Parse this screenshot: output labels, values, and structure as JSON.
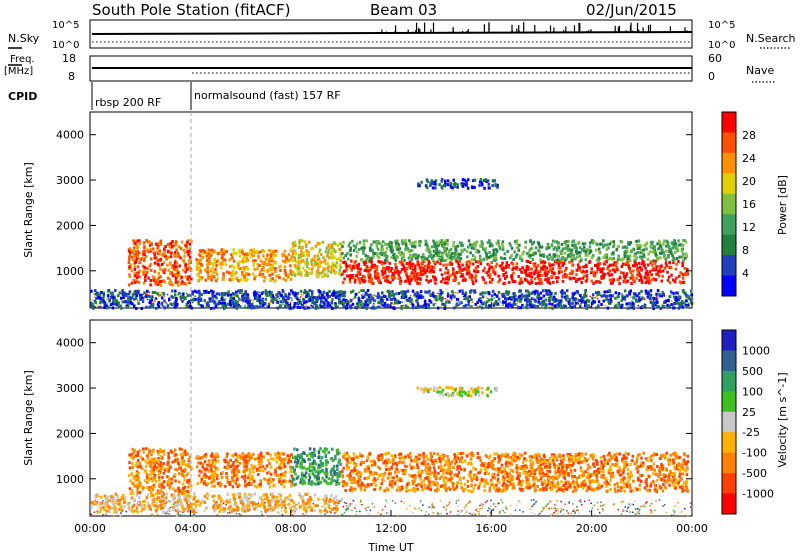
{
  "header": {
    "station": "South Pole Station (fitACF)",
    "beam": "Beam 03",
    "date": "02/Jun/2015"
  },
  "panels": {
    "nsky_label": "N.Sky",
    "nsearch_label": "N.Search",
    "freq_label_1": "Freq.",
    "freq_label_2": "[MHz]",
    "nave_label": "Nave",
    "cpid_label": "CPID",
    "sky_top": "10^5",
    "sky_bot": "10^0",
    "search_top": "10^5",
    "search_bot": "10^0",
    "freq_top": "18",
    "freq_bot": "8",
    "nave_top": "60",
    "nave_bot": "0",
    "cpid_1": "rbsp 200 RF",
    "cpid_2": "normalsound (fast) 157 RF"
  },
  "colors": {
    "power_scale": [
      "#0000ff",
      "#2040c0",
      "#208040",
      "#40a060",
      "#80c040",
      "#e0d000",
      "#ff9000",
      "#ff5000",
      "#ff0000"
    ],
    "velocity_scale": [
      "#ff0000",
      "#ff4000",
      "#ff8000",
      "#ffb000",
      "#c8c8c8",
      "#40c020",
      "#30a060",
      "#306090",
      "#2020c0"
    ]
  },
  "chart_data": [
    {
      "type": "heatmap",
      "name": "power",
      "ylabel": "Slant Range [km]",
      "colorbar_label": "Power [dB]",
      "colorbar_ticks": [
        "4",
        "8",
        "12",
        "16",
        "20",
        "24",
        "28"
      ],
      "xlim": [
        "00:00",
        "24:00"
      ],
      "ylim": [
        180,
        4500
      ],
      "yticks": [
        "1000",
        "2000",
        "3000",
        "4000"
      ],
      "bands": [
        {
          "t0": 1.5,
          "t1": 4.0,
          "r0": 700,
          "r1": 1700,
          "level": 7
        },
        {
          "t0": 4.2,
          "t1": 8.0,
          "r0": 800,
          "r1": 1500,
          "level": 6
        },
        {
          "t0": 8.0,
          "t1": 10.0,
          "r0": 900,
          "r1": 1700,
          "level": 5
        },
        {
          "t0": 10.0,
          "t1": 23.8,
          "r0": 750,
          "r1": 1250,
          "level": 8
        },
        {
          "t0": 10.0,
          "t1": 23.8,
          "r0": 1250,
          "r1": 1700,
          "level": 3
        },
        {
          "t0": 13.0,
          "t1": 16.2,
          "r0": 2850,
          "r1": 3050,
          "level": 1
        },
        {
          "t0": 0.0,
          "t1": 24.0,
          "r0": 200,
          "r1": 600,
          "level": 1
        }
      ]
    },
    {
      "type": "heatmap",
      "name": "velocity",
      "xlabel": "Time UT",
      "ylabel": "Slant Range [km]",
      "colorbar_label": "Velocity [m s^-1]",
      "colorbar_ticks": [
        "1000",
        "500",
        "100",
        "25",
        "-25",
        "-100",
        "-500",
        "-1000"
      ],
      "xlim": [
        "00:00",
        "24:00"
      ],
      "ylim": [
        180,
        4500
      ],
      "xticks": [
        "00:00",
        "04:00",
        "08:00",
        "12:00",
        "16:00",
        "20:00",
        "00:00"
      ],
      "yticks": [
        "1000",
        "2000",
        "3000",
        "4000"
      ],
      "bands": [
        {
          "t0": 1.5,
          "t1": 4.0,
          "r0": 700,
          "r1": 1700,
          "level": 2
        },
        {
          "t0": 4.2,
          "t1": 8.0,
          "r0": 850,
          "r1": 1600,
          "level": 2
        },
        {
          "t0": 8.0,
          "t1": 10.0,
          "r0": 900,
          "r1": 1700,
          "level": 6
        },
        {
          "t0": 10.0,
          "t1": 23.8,
          "r0": 750,
          "r1": 1600,
          "level": 2
        },
        {
          "t0": 0.0,
          "t1": 10.0,
          "r0": 300,
          "r1": 700,
          "level": 3
        },
        {
          "t0": 13.0,
          "t1": 16.2,
          "r0": 2850,
          "r1": 3050,
          "level": 4
        }
      ]
    }
  ]
}
